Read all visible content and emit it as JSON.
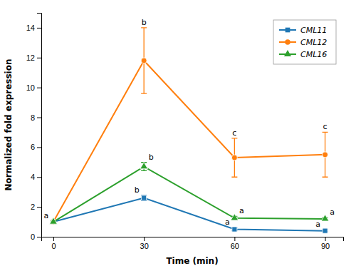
{
  "chart_data": {
    "type": "line",
    "x": [
      0,
      30,
      60,
      90
    ],
    "xlabel": "Time (min)",
    "ylabel": "Normalized fold expression",
    "xlim": [
      -4,
      96
    ],
    "xticks": [
      0,
      30,
      60,
      90
    ],
    "ylim": [
      0,
      15
    ],
    "yticks": [
      0,
      2,
      4,
      6,
      8,
      10,
      12,
      14
    ],
    "grid": false,
    "legend": "upper-right",
    "series": [
      {
        "name": "CML11",
        "marker": "square",
        "values": [
          1.0,
          2.6,
          0.5,
          0.4
        ],
        "errors": [
          0.05,
          0.18,
          0.1,
          0.06
        ],
        "letters": [
          "a",
          "b",
          "a",
          "a"
        ]
      },
      {
        "name": "CML12",
        "marker": "circle",
        "values": [
          1.0,
          11.8,
          5.3,
          5.5
        ],
        "errors": [
          0.05,
          2.2,
          1.3,
          1.5
        ],
        "letters": [
          null,
          "b",
          "c",
          "c"
        ]
      },
      {
        "name": "CML16",
        "marker": "triangle",
        "values": [
          1.0,
          4.7,
          1.25,
          1.2
        ],
        "errors": [
          0.05,
          0.28,
          0.12,
          0.1
        ],
        "letters": [
          null,
          "b",
          "a",
          "a"
        ]
      }
    ]
  }
}
